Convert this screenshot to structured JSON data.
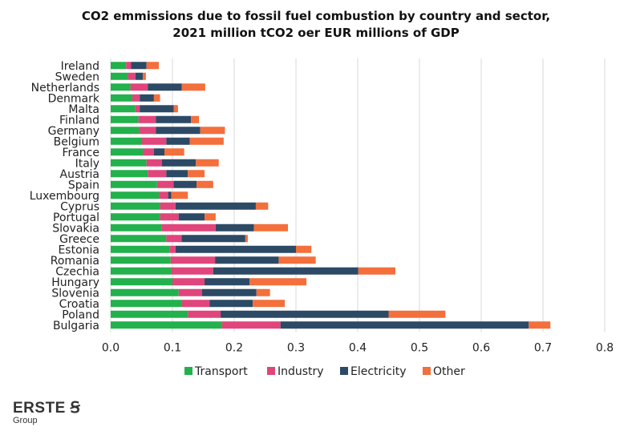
{
  "header": {
    "title_line1": "CO2 emmissions due to fossil fuel combustion by country and sector,",
    "title_line2": "2021 million tCO2 oer EUR millions of GDP"
  },
  "chart_data": {
    "type": "bar",
    "orientation": "horizontal",
    "stacked": true,
    "categories": [
      "Ireland",
      "Sweden",
      "Netherlands",
      "Denmark",
      "Malta",
      "Finland",
      "Germany",
      "Belgium",
      "France",
      "Italy",
      "Austria",
      "Spain",
      "Luxembourg",
      "Cyprus",
      "Portugal",
      "Slovakia",
      "Greece",
      "Estonia",
      "Romania",
      "Czechia",
      "Hungary",
      "Slovenia",
      "Croatia",
      "Poland",
      "Bulgaria"
    ],
    "series": [
      {
        "name": "Transport",
        "color": "#22b14c",
        "values": [
          0.025,
          0.028,
          0.032,
          0.035,
          0.04,
          0.045,
          0.046,
          0.05,
          0.052,
          0.058,
          0.06,
          0.075,
          0.078,
          0.08,
          0.08,
          0.082,
          0.09,
          0.095,
          0.097,
          0.098,
          0.1,
          0.11,
          0.115,
          0.125,
          0.18
        ]
      },
      {
        "name": "Industry",
        "color": "#e0457b",
        "values": [
          0.008,
          0.012,
          0.028,
          0.012,
          0.007,
          0.028,
          0.027,
          0.04,
          0.018,
          0.025,
          0.03,
          0.027,
          0.015,
          0.025,
          0.03,
          0.088,
          0.025,
          0.01,
          0.072,
          0.068,
          0.052,
          0.038,
          0.045,
          0.053,
          0.095
        ]
      },
      {
        "name": "Electricity",
        "color": "#2c4a66",
        "values": [
          0.025,
          0.012,
          0.055,
          0.023,
          0.055,
          0.057,
          0.072,
          0.038,
          0.017,
          0.055,
          0.035,
          0.037,
          0.005,
          0.13,
          0.042,
          0.062,
          0.103,
          0.195,
          0.103,
          0.235,
          0.073,
          0.088,
          0.07,
          0.272,
          0.402
        ]
      },
      {
        "name": "Other",
        "color": "#f36f3c",
        "values": [
          0.02,
          0.005,
          0.038,
          0.01,
          0.007,
          0.013,
          0.04,
          0.055,
          0.032,
          0.037,
          0.027,
          0.027,
          0.027,
          0.02,
          0.018,
          0.055,
          0.004,
          0.025,
          0.06,
          0.06,
          0.092,
          0.022,
          0.052,
          0.092,
          0.035
        ]
      }
    ],
    "xlim": [
      0,
      0.8
    ],
    "xticks": [
      "0.0",
      "0.1",
      "0.2",
      "0.3",
      "0.4",
      "0.5",
      "0.6",
      "0.7",
      "0.8"
    ],
    "grid": "vertical",
    "legend": "bottom"
  },
  "logo": {
    "brand": "ERSTE",
    "sub": "Group"
  }
}
